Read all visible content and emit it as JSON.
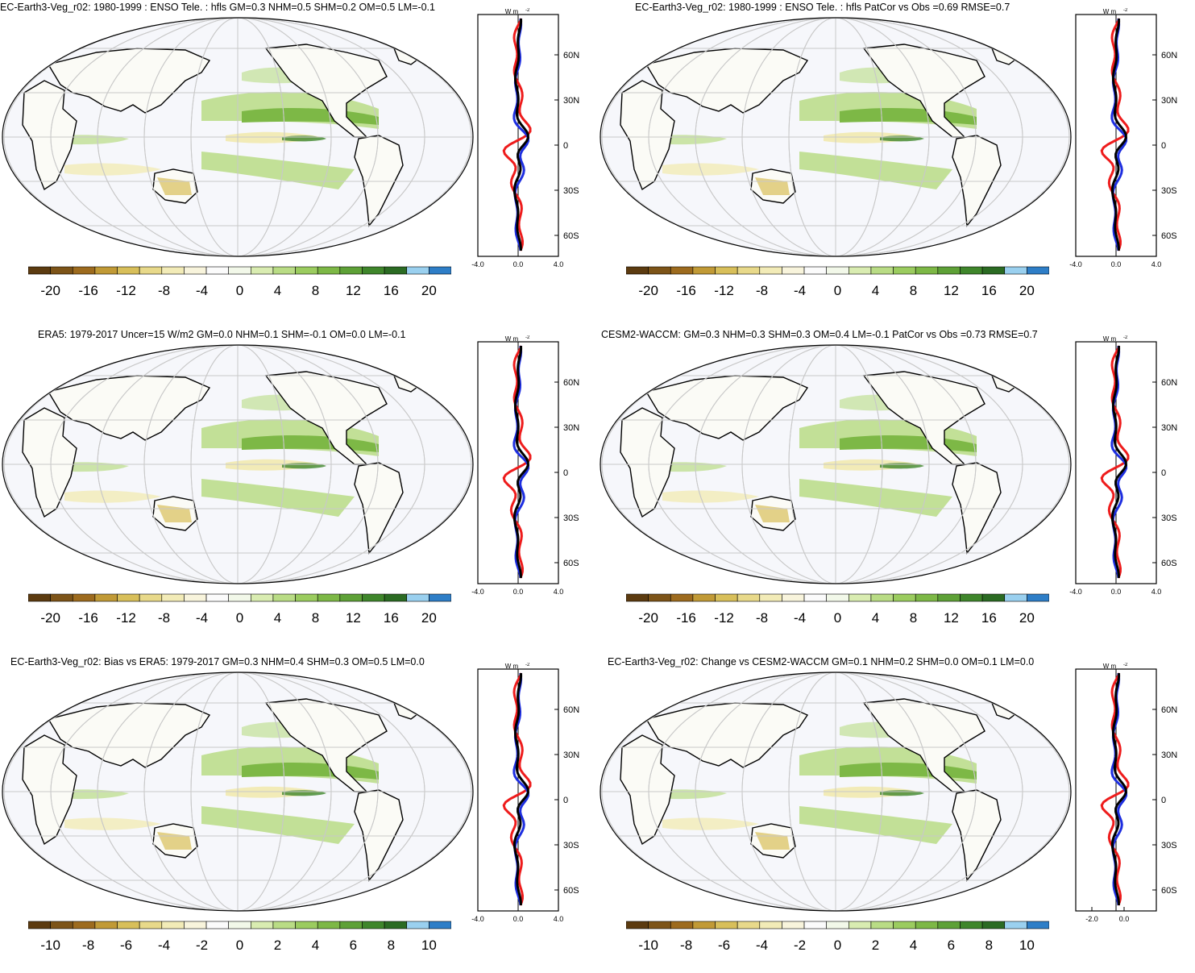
{
  "colorbar_colors": [
    "#5c3b10",
    "#7d5418",
    "#9d6b1e",
    "#c19a36",
    "#d8bf5a",
    "#e8d98a",
    "#f2ebb7",
    "#f8f4dc",
    "#fbfbfb",
    "#f2f8e9",
    "#d9ecb1",
    "#b9dc85",
    "#9bcc5f",
    "#7db846",
    "#5ea137",
    "#3f862b",
    "#2b6b23",
    "#9ad0ef",
    "#2e7ec7"
  ],
  "lat_labels": [
    "60N",
    "30N",
    "0",
    "30S",
    "60S"
  ],
  "profile_unit": "W m",
  "profile_unit_sup": "-2",
  "panels": [
    {
      "title": "EC-Earth3-Veg_r02: 1980-1999 : ENSO Tele. : hfls GM=0.3 NHM=0.5 SHM=0.2 OM=0.5 LM=-0.1",
      "colorbar_ticks": [
        "-20",
        "-16",
        "-12",
        "-8",
        "-4",
        "0",
        "4",
        "8",
        "12",
        "16",
        "20"
      ],
      "profile_ticks": [
        "-4.0",
        "0.0",
        "4.0"
      ]
    },
    {
      "title": "EC-Earth3-Veg_r02: 1980-1999 : ENSO Tele. : hfls PatCor vs Obs =0.69 RMSE=0.7",
      "colorbar_ticks": [
        "-20",
        "-16",
        "-12",
        "-8",
        "-4",
        "0",
        "4",
        "8",
        "12",
        "16",
        "20"
      ],
      "profile_ticks": [
        "-4.0",
        "0.0",
        "4.0"
      ]
    },
    {
      "title": "ERA5: 1979-2017 Uncer=15 W/m2 GM=0.0 NHM=0.1 SHM=-0.1 OM=0.0 LM=-0.1",
      "colorbar_ticks": [
        "-20",
        "-16",
        "-12",
        "-8",
        "-4",
        "0",
        "4",
        "8",
        "12",
        "16",
        "20"
      ],
      "profile_ticks": [
        "-4.0",
        "0.0",
        "4.0"
      ]
    },
    {
      "title": "CESM2-WACCM: GM=0.3 NHM=0.3 SHM=0.3 OM=0.4 LM=-0.1 PatCor vs Obs =0.73 RMSE=0.7",
      "colorbar_ticks": [
        "-20",
        "-16",
        "-12",
        "-8",
        "-4",
        "0",
        "4",
        "8",
        "12",
        "16",
        "20"
      ],
      "profile_ticks": [
        "-4.0",
        "0.0",
        "4.0"
      ]
    },
    {
      "title": "EC-Earth3-Veg_r02: Bias vs ERA5: 1979-2017 GM=0.3 NHM=0.4 SHM=0.3 OM=0.5 LM=0.0",
      "colorbar_ticks": [
        "-10",
        "-8",
        "-6",
        "-4",
        "-2",
        "0",
        "2",
        "4",
        "6",
        "8",
        "10"
      ],
      "profile_ticks": [
        "-4.0",
        "0.0",
        "4.0"
      ]
    },
    {
      "title": "EC-Earth3-Veg_r02: Change vs CESM2-WACCM GM=0.1 NHM=0.2 SHM=0.0 OM=0.1 LM=0.0",
      "colorbar_ticks": [
        "-10",
        "-8",
        "-6",
        "-4",
        "-2",
        "0",
        "2",
        "4",
        "6",
        "8",
        "10"
      ],
      "profile_ticks": [
        "-2.0",
        "0.0"
      ]
    }
  ]
}
